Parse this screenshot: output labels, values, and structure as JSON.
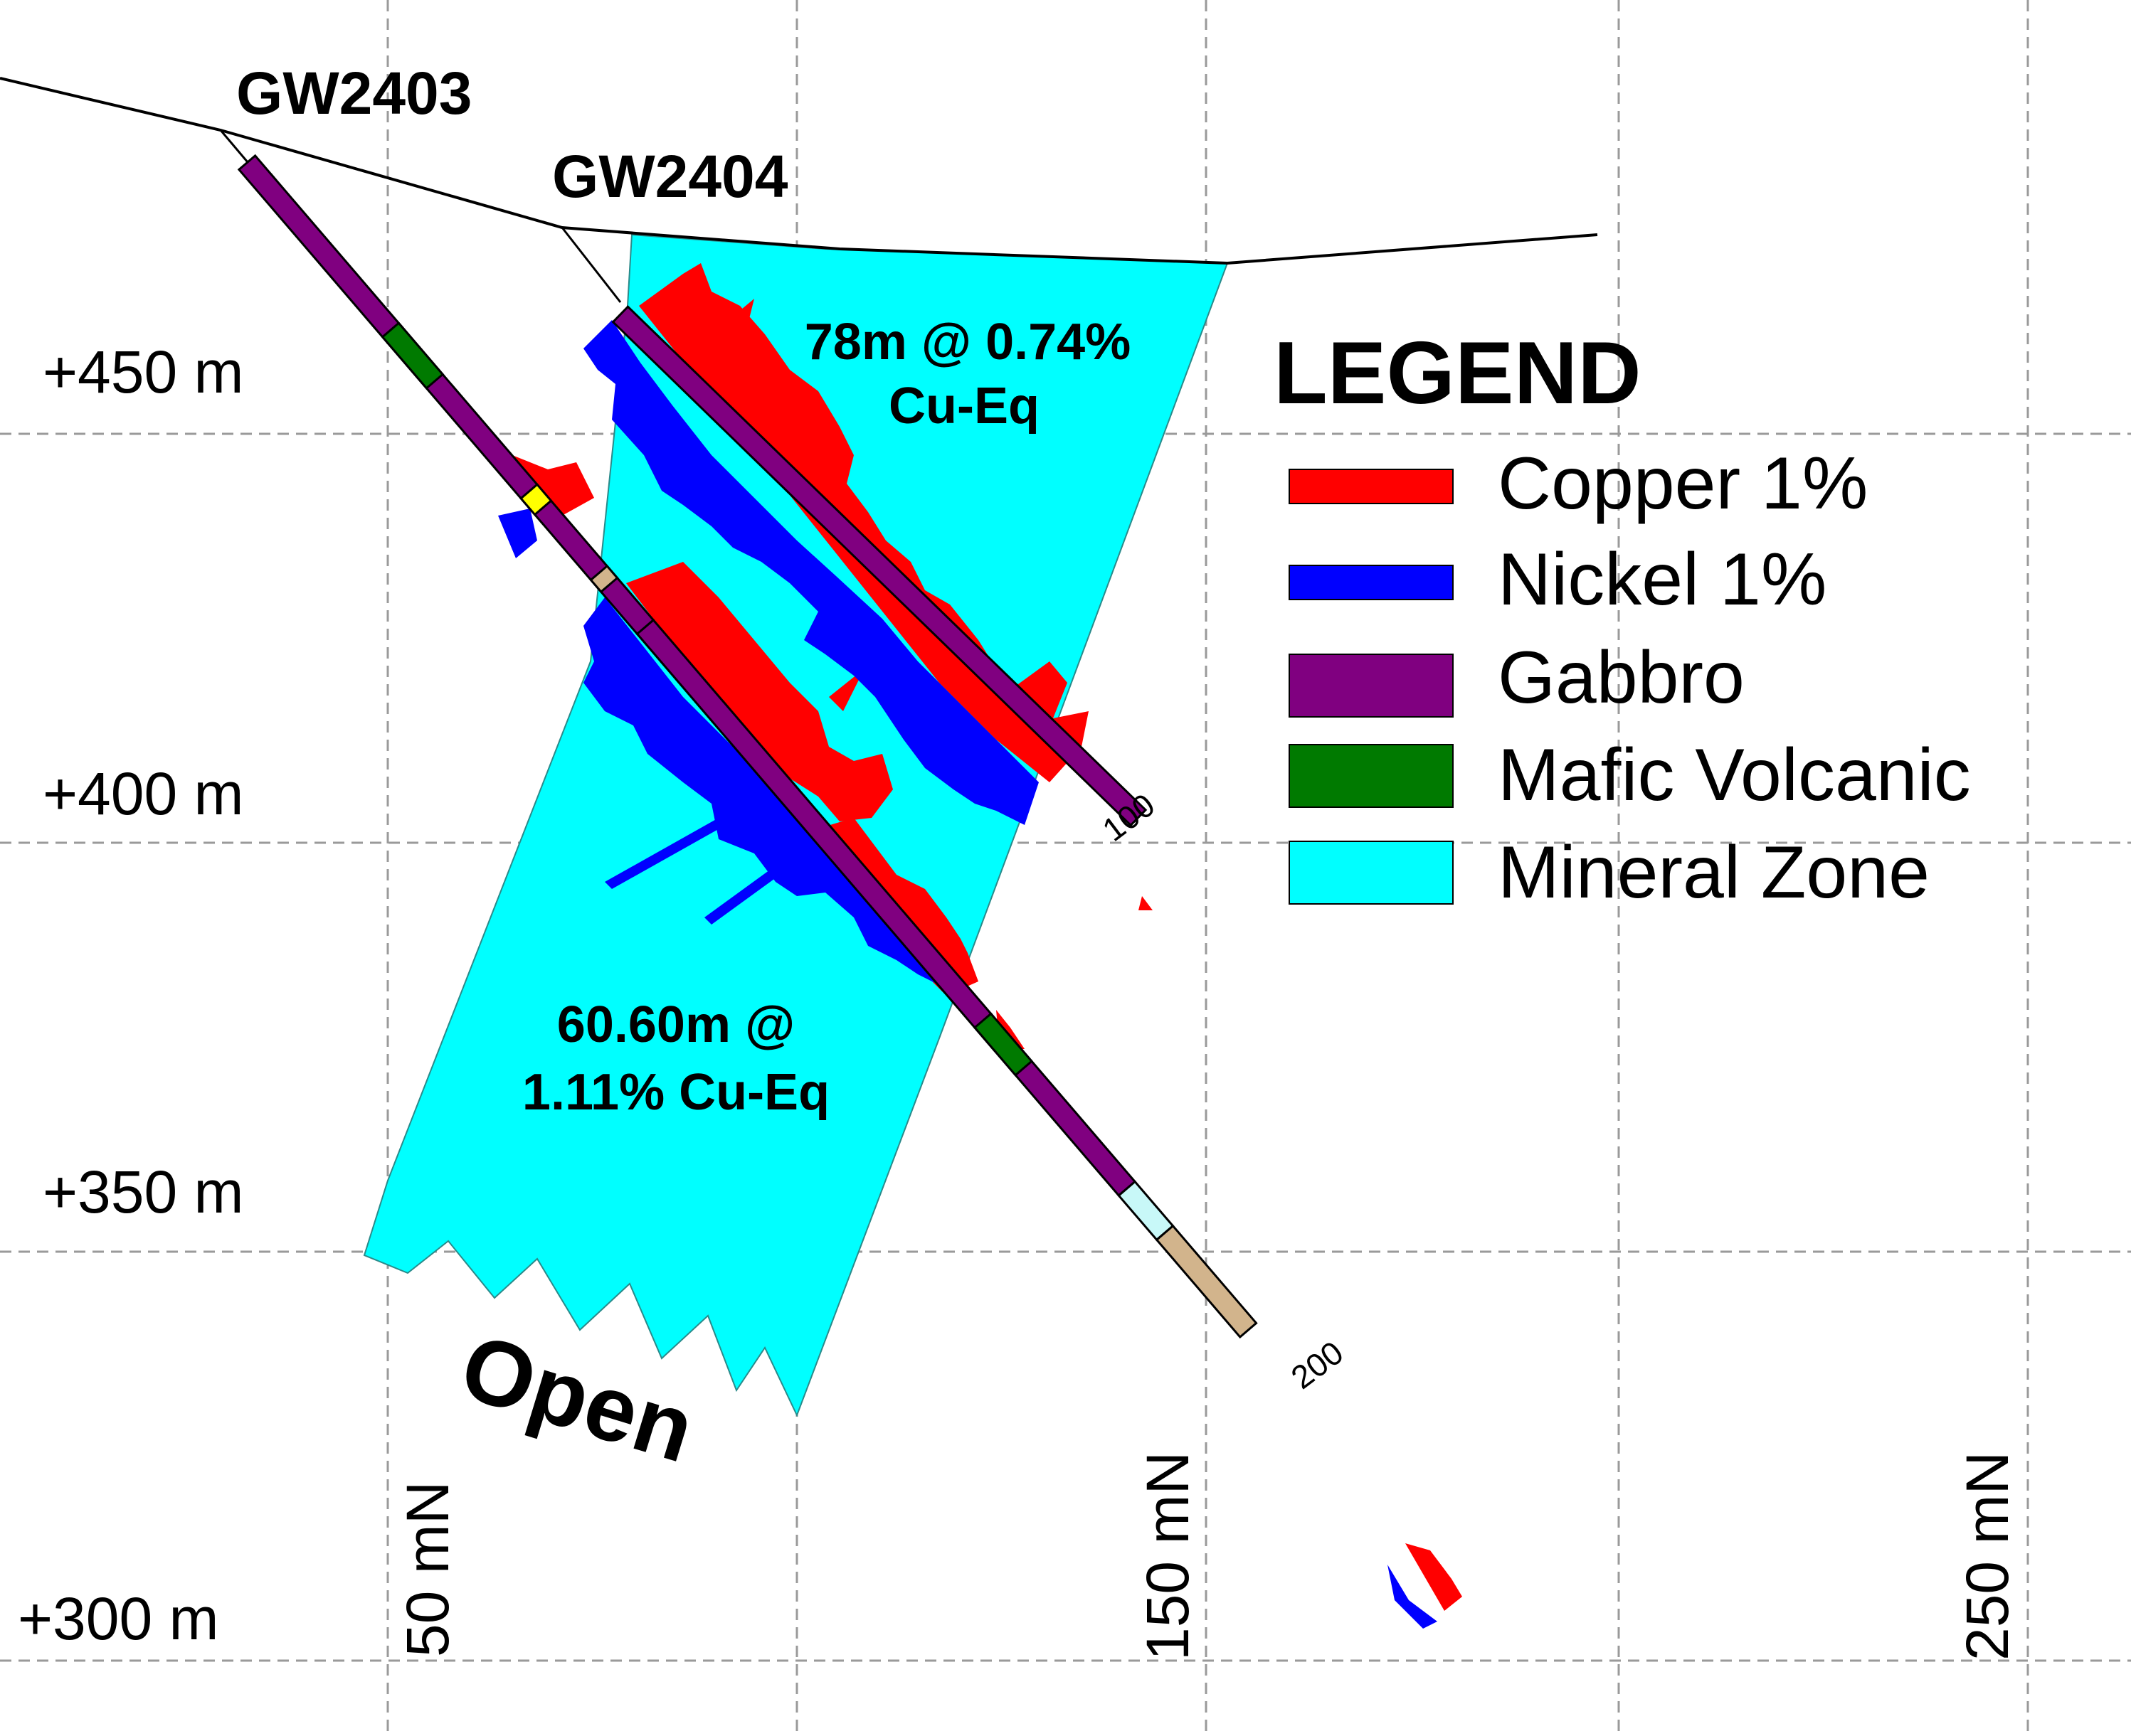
{
  "holes": [
    {
      "id": "GW2403"
    },
    {
      "id": "GW2404"
    }
  ],
  "elevation_labels": [
    "+450 m",
    "+400 m",
    "+350 m",
    "+300 m"
  ],
  "northing_labels": [
    "50 mN",
    "150 mN",
    "250 mN"
  ],
  "depth_marks": [
    "100",
    "200"
  ],
  "intercepts": {
    "upper_line1": "78m @ 0.74%",
    "upper_line2": "Cu-Eq",
    "lower_line1": "60.60m @",
    "lower_line2": "1.11% Cu-Eq"
  },
  "open_label": "Open",
  "legend": {
    "title": "LEGEND",
    "items": [
      {
        "label": "Copper 1%",
        "color": "#ff0000"
      },
      {
        "label": "Nickel 1%",
        "color": "#0000ff"
      },
      {
        "label": "Gabbro",
        "color": "#800080"
      },
      {
        "label": "Mafic Volcanic",
        "color": "#007a00"
      },
      {
        "label": "Mineral Zone",
        "color": "#00ffff"
      }
    ]
  },
  "colors": {
    "copper": "#ff0000",
    "nickel": "#0000ff",
    "gabbro": "#800080",
    "mafic": "#007a00",
    "zone": "#00ffff",
    "overburden": "#d2b48c",
    "accent_yellow": "#ffff00",
    "light_zone": "#c8f8f8",
    "grid": "#9a9a9a"
  }
}
